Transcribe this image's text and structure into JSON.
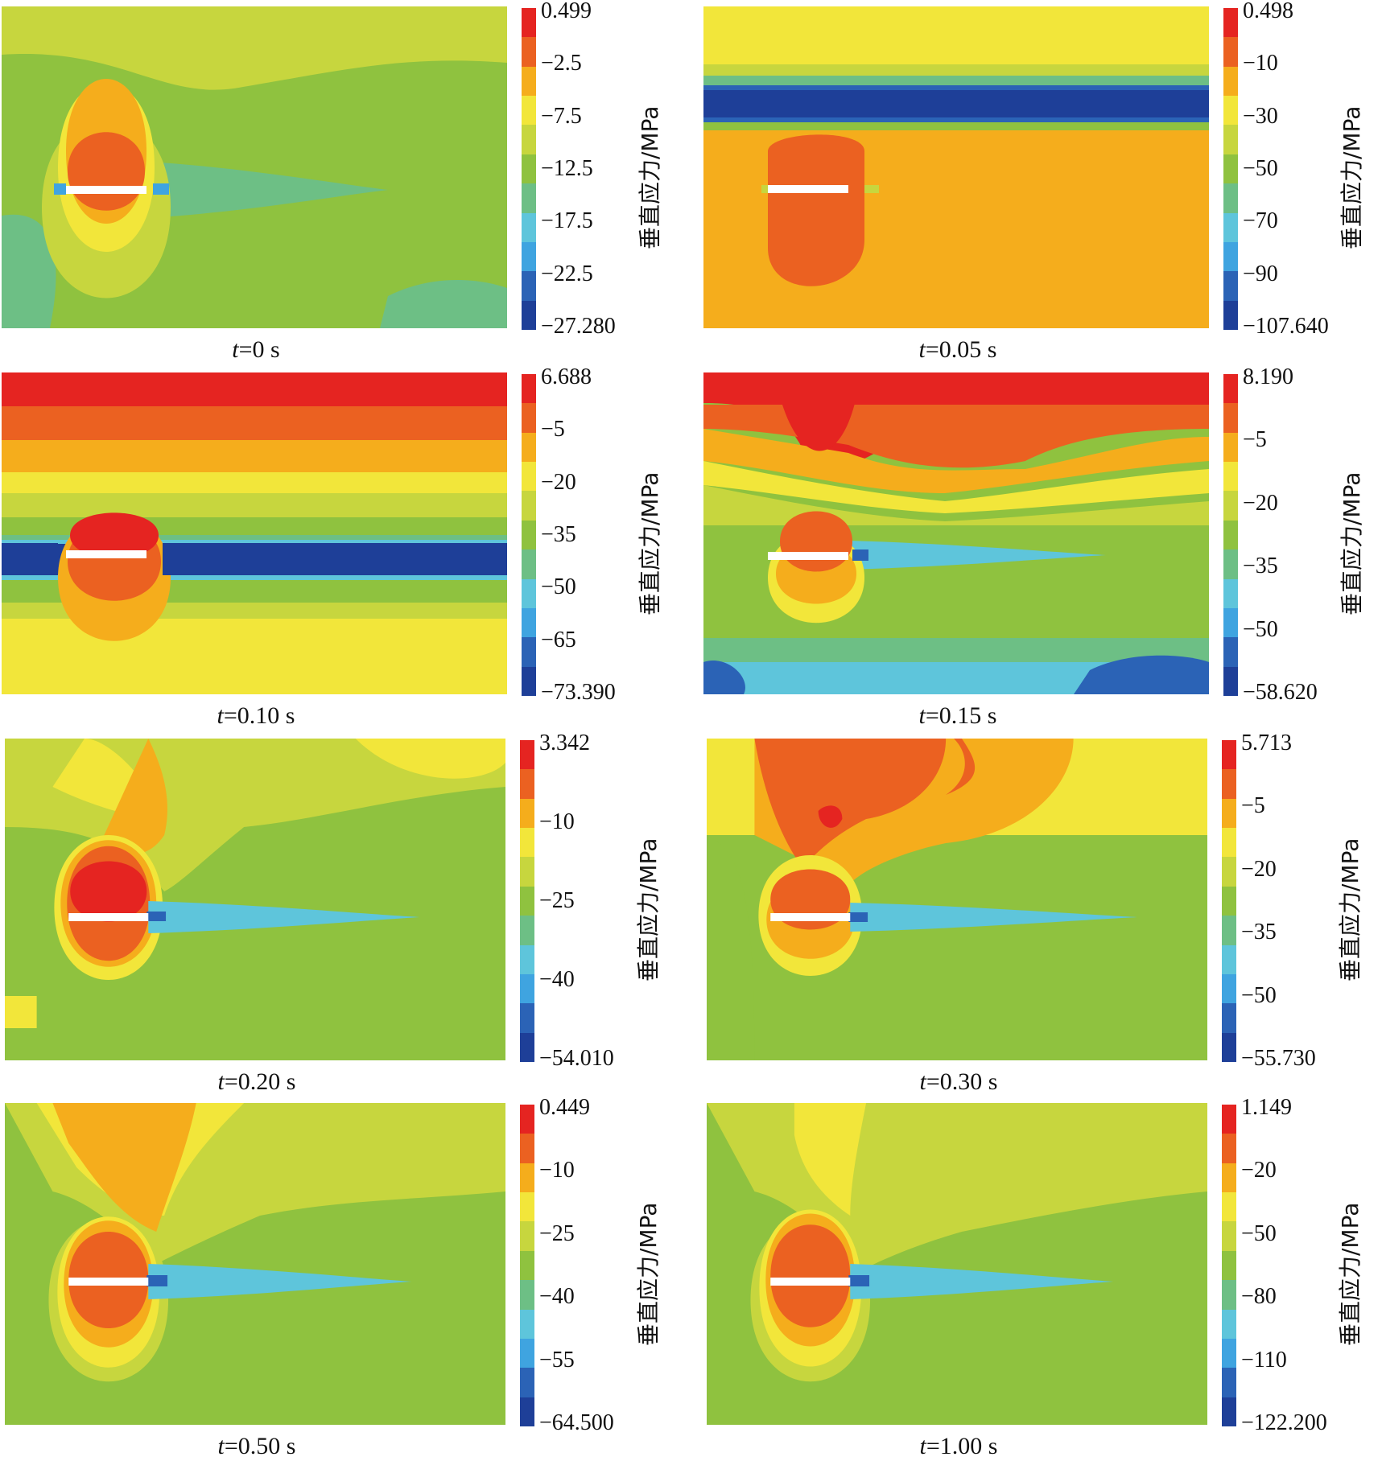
{
  "chart_data": [
    {
      "type": "heatmap",
      "caption_var": "t",
      "caption_val": "=0 s",
      "colorbar_label": "垂直应力/MPa",
      "colorbar_ticks": [
        "0.499",
        "−2.5",
        "−7.5",
        "−12.5",
        "−17.5",
        "−22.5",
        "−27.280"
      ],
      "colorbar_colors": [
        "#e52421",
        "#eb6121",
        "#f5ad1c",
        "#f2e63a",
        "#c7d63e",
        "#8fc23f",
        "#6dbf85",
        "#5ec5db",
        "#3fa4e0",
        "#2b63b6",
        "#1e3f98"
      ]
    },
    {
      "type": "heatmap",
      "caption_var": "t",
      "caption_val": "=0.05 s",
      "colorbar_label": "垂直应力/MPa",
      "colorbar_ticks": [
        "0.498",
        "−10",
        "−30",
        "−50",
        "−70",
        "−90",
        "−107.640"
      ],
      "colorbar_colors": [
        "#e52421",
        "#eb6121",
        "#f5ad1c",
        "#f2e63a",
        "#c7d63e",
        "#8fc23f",
        "#6dbf85",
        "#5ec5db",
        "#3fa4e0",
        "#2b63b6",
        "#1e3f98"
      ]
    },
    {
      "type": "heatmap",
      "caption_var": "t",
      "caption_val": "=0.10 s",
      "colorbar_label": "垂直应力/MPa",
      "colorbar_ticks": [
        "6.688",
        "−5",
        "−20",
        "−35",
        "−50",
        "−65",
        "−73.390"
      ],
      "colorbar_colors": [
        "#e52421",
        "#eb6121",
        "#f5ad1c",
        "#f2e63a",
        "#c7d63e",
        "#8fc23f",
        "#6dbf85",
        "#5ec5db",
        "#3fa4e0",
        "#2b63b6",
        "#1e3f98"
      ]
    },
    {
      "type": "heatmap",
      "caption_var": "t",
      "caption_val": "=0.15 s",
      "colorbar_label": "垂直应力/MPa",
      "colorbar_ticks": [
        "8.190",
        "−5",
        "−20",
        "−35",
        "−50",
        "−58.620"
      ],
      "colorbar_colors": [
        "#e52421",
        "#eb6121",
        "#f5ad1c",
        "#f2e63a",
        "#c7d63e",
        "#8fc23f",
        "#6dbf85",
        "#5ec5db",
        "#3fa4e0",
        "#2b63b6",
        "#1e3f98"
      ]
    },
    {
      "type": "heatmap",
      "caption_var": "t",
      "caption_val": "=0.20 s",
      "colorbar_label": "垂直应力/MPa",
      "colorbar_ticks": [
        "3.342",
        "−10",
        "−25",
        "−40",
        "−54.010"
      ],
      "colorbar_colors": [
        "#e52421",
        "#eb6121",
        "#f5ad1c",
        "#f2e63a",
        "#c7d63e",
        "#8fc23f",
        "#6dbf85",
        "#5ec5db",
        "#3fa4e0",
        "#2b63b6",
        "#1e3f98"
      ]
    },
    {
      "type": "heatmap",
      "caption_var": "t",
      "caption_val": "=0.30 s",
      "colorbar_label": "垂直应力/MPa",
      "colorbar_ticks": [
        "5.713",
        "−5",
        "−20",
        "−35",
        "−50",
        "−55.730"
      ],
      "colorbar_colors": [
        "#e52421",
        "#eb6121",
        "#f5ad1c",
        "#f2e63a",
        "#c7d63e",
        "#8fc23f",
        "#6dbf85",
        "#5ec5db",
        "#3fa4e0",
        "#2b63b6",
        "#1e3f98"
      ]
    },
    {
      "type": "heatmap",
      "caption_var": "t",
      "caption_val": "=0.50 s",
      "colorbar_label": "垂直应力/MPa",
      "colorbar_ticks": [
        "0.449",
        "−10",
        "−25",
        "−40",
        "−55",
        "−64.500"
      ],
      "colorbar_colors": [
        "#e52421",
        "#eb6121",
        "#f5ad1c",
        "#f2e63a",
        "#c7d63e",
        "#8fc23f",
        "#6dbf85",
        "#5ec5db",
        "#3fa4e0",
        "#2b63b6",
        "#1e3f98"
      ]
    },
    {
      "type": "heatmap",
      "caption_var": "t",
      "caption_val": "=1.00 s",
      "colorbar_label": "垂直应力/MPa",
      "colorbar_ticks": [
        "1.149",
        "−20",
        "−50",
        "−80",
        "−110",
        "−122.200"
      ],
      "colorbar_colors": [
        "#e52421",
        "#eb6121",
        "#f5ad1c",
        "#f2e63a",
        "#c7d63e",
        "#8fc23f",
        "#6dbf85",
        "#5ec5db",
        "#3fa4e0",
        "#2b63b6",
        "#1e3f98"
      ]
    }
  ]
}
